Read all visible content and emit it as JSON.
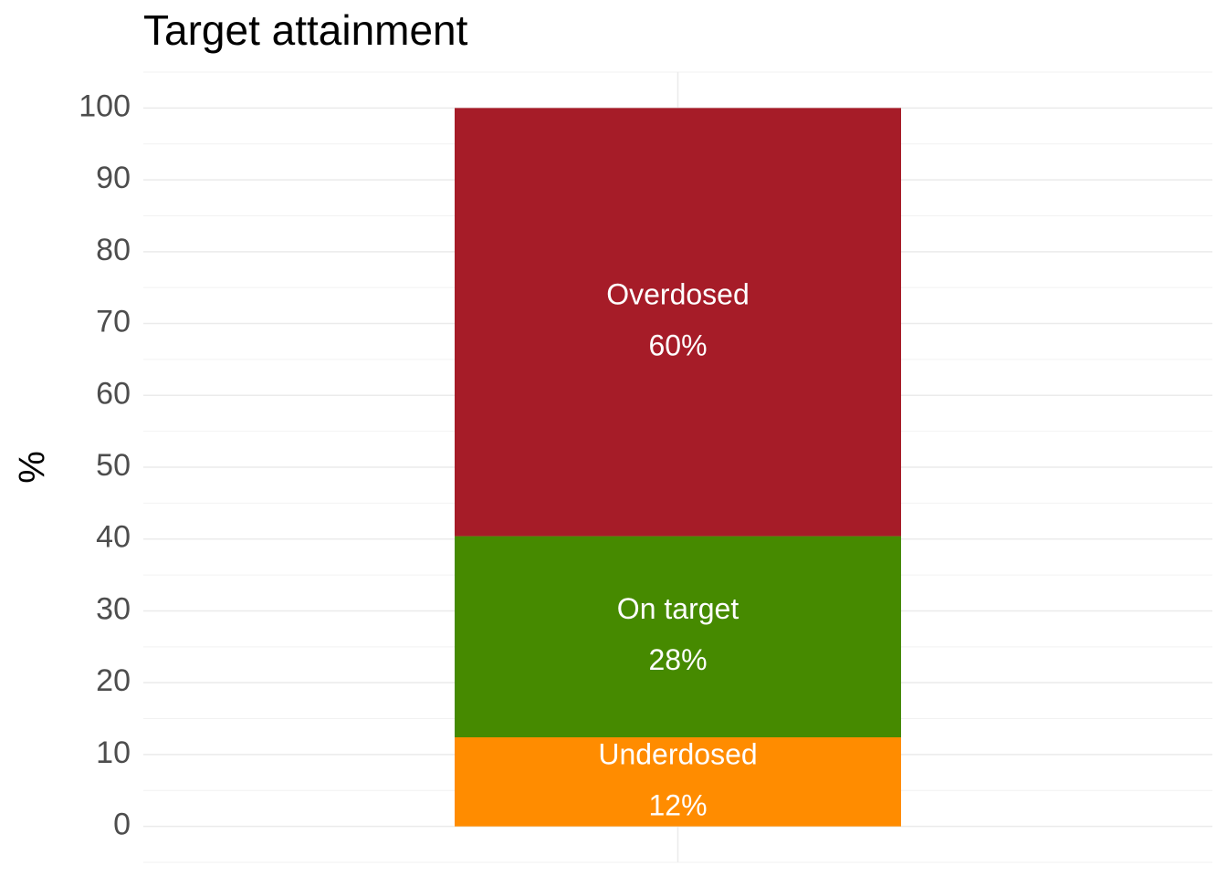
{
  "chart_data": {
    "type": "bar",
    "stacked": true,
    "title": "Target attainment",
    "y_label": "%",
    "categories": [
      null
    ],
    "series": [
      {
        "name": "Underdosed",
        "color": "#ff8c00",
        "values": [
          12.4
        ],
        "value_labels": [
          "12%"
        ]
      },
      {
        "name": "On target",
        "color": "#468a00",
        "values": [
          28
        ],
        "value_labels": [
          "28%"
        ]
      },
      {
        "name": "Overdosed",
        "color": "#a61c28",
        "values": [
          59.6
        ],
        "value_labels": [
          "60%"
        ]
      }
    ],
    "ylim": [
      -5,
      105
    ],
    "yticks": [
      0,
      10,
      20,
      30,
      40,
      50,
      60,
      70,
      80,
      90,
      100
    ],
    "grid": true
  }
}
